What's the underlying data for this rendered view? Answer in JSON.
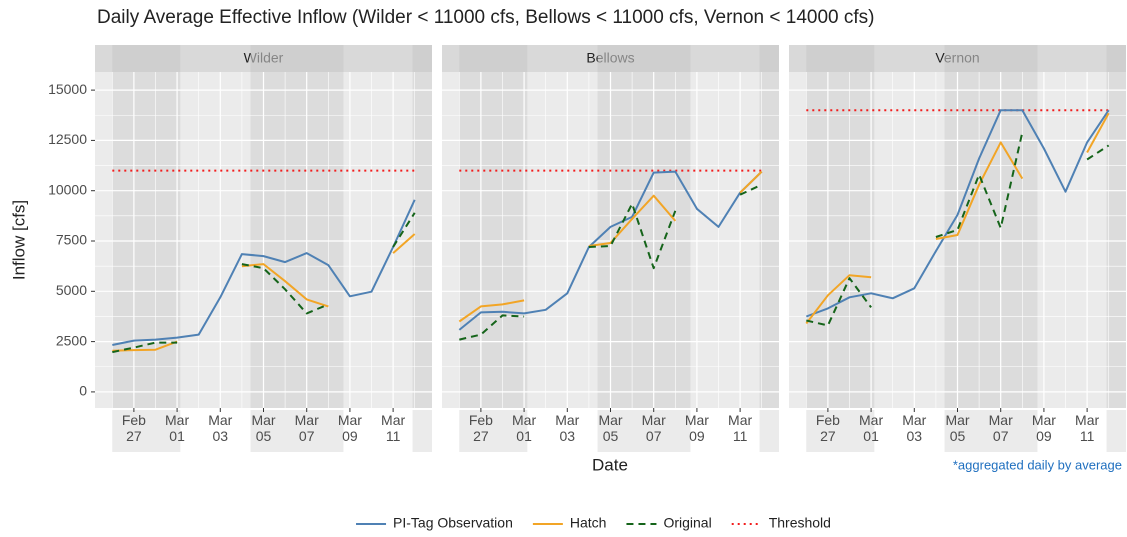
{
  "title": "Daily Average Effective Inflow (Wilder < 11000 cfs, Bellows < 11000 cfs, Vernon < 14000 cfs)",
  "x_label": "Date",
  "y_label": "Inflow [cfs]",
  "note": "*aggregated daily by average",
  "series_styles": [
    {
      "name": "PI-Tag Observation",
      "color": "#4f81b4",
      "dash": "solid"
    },
    {
      "name": "Hatch",
      "color": "#f2a526",
      "dash": "solid"
    },
    {
      "name": "Original",
      "color": "#15641a",
      "dash": "dashed"
    },
    {
      "name": "Threshold",
      "color": "#f21d1d",
      "dash": "dotted"
    }
  ],
  "chart_data": [
    {
      "type": "line",
      "title": "Wilder",
      "x": [
        "Feb 26",
        "Feb 27",
        "Feb 28",
        "Mar 01",
        "Mar 02",
        "Mar 03",
        "Mar 04",
        "Mar 05",
        "Mar 06",
        "Mar 07",
        "Mar 08",
        "Mar 09",
        "Mar 10",
        "Mar 11",
        "Mar 12"
      ],
      "series": [
        {
          "values": [
            2330,
            2550,
            2600,
            2700,
            2850,
            4700,
            6850,
            6750,
            6450,
            6900,
            6300,
            4750,
            4980,
            7200,
            9550
          ]
        },
        {
          "values": [
            2050,
            2080,
            2100,
            2500,
            null,
            null,
            6250,
            6350,
            5500,
            4600,
            4250,
            null,
            null,
            6900,
            7850
          ]
        },
        {
          "values": [
            1980,
            2200,
            2450,
            2450,
            null,
            null,
            6350,
            6150,
            5100,
            3900,
            4350,
            null,
            null,
            7200,
            8900
          ]
        }
      ],
      "threshold": 11000,
      "ylim": [
        -800,
        15900
      ],
      "yticks": [
        0,
        2500,
        5000,
        7500,
        10000,
        12500,
        15000
      ],
      "xticks": [
        "Feb 27",
        "Mar 01",
        "Mar 03",
        "Mar 05",
        "Mar 07",
        "Mar 09",
        "Mar 11"
      ],
      "grid": true
    },
    {
      "type": "line",
      "title": "Bellows",
      "x": [
        "Feb 26",
        "Feb 27",
        "Feb 28",
        "Mar 01",
        "Mar 02",
        "Mar 03",
        "Mar 04",
        "Mar 05",
        "Mar 06",
        "Mar 07",
        "Mar 08",
        "Mar 09",
        "Mar 10",
        "Mar 11",
        "Mar 12"
      ],
      "series": [
        {
          "values": [
            3080,
            3950,
            3980,
            3900,
            4080,
            4900,
            7200,
            8200,
            8700,
            10900,
            10950,
            9100,
            8200,
            9900,
            10950
          ]
        },
        {
          "values": [
            3500,
            4250,
            4350,
            4550,
            null,
            null,
            7250,
            7400,
            8600,
            9750,
            8500,
            null,
            null,
            9900,
            10950
          ]
        },
        {
          "values": [
            2600,
            2850,
            3800,
            3750,
            null,
            null,
            7200,
            7250,
            9350,
            6150,
            9000,
            null,
            null,
            9800,
            10300
          ]
        }
      ],
      "threshold": 11000,
      "ylim": [
        -800,
        15900
      ],
      "yticks": [
        0,
        2500,
        5000,
        7500,
        10000,
        12500,
        15000
      ],
      "xticks": [
        "Feb 27",
        "Mar 01",
        "Mar 03",
        "Mar 05",
        "Mar 07",
        "Mar 09",
        "Mar 11"
      ],
      "grid": true
    },
    {
      "type": "line",
      "title": "Vernon",
      "x": [
        "Feb 26",
        "Feb 27",
        "Feb 28",
        "Mar 01",
        "Mar 02",
        "Mar 03",
        "Mar 04",
        "Mar 05",
        "Mar 06",
        "Mar 07",
        "Mar 08",
        "Mar 09",
        "Mar 10",
        "Mar 11",
        "Mar 12"
      ],
      "series": [
        {
          "values": [
            3750,
            4150,
            4700,
            4900,
            4650,
            5150,
            7000,
            8800,
            11600,
            14000,
            14000,
            12100,
            9950,
            12400,
            14000
          ]
        },
        {
          "values": [
            3400,
            4800,
            5800,
            5700,
            null,
            null,
            7600,
            7800,
            10300,
            12400,
            10600,
            null,
            null,
            11900,
            13850
          ]
        },
        {
          "values": [
            3550,
            3300,
            5650,
            4200,
            null,
            null,
            7700,
            8050,
            10800,
            8150,
            12900,
            null,
            null,
            11550,
            12250
          ]
        }
      ],
      "threshold": 14000,
      "ylim": [
        -800,
        15900
      ],
      "yticks": [
        0,
        2500,
        5000,
        7500,
        10000,
        12500,
        15000
      ],
      "xticks": [
        "Feb 27",
        "Mar 01",
        "Mar 03",
        "Mar 05",
        "Mar 07",
        "Mar 09",
        "Mar 11"
      ],
      "grid": true
    }
  ]
}
